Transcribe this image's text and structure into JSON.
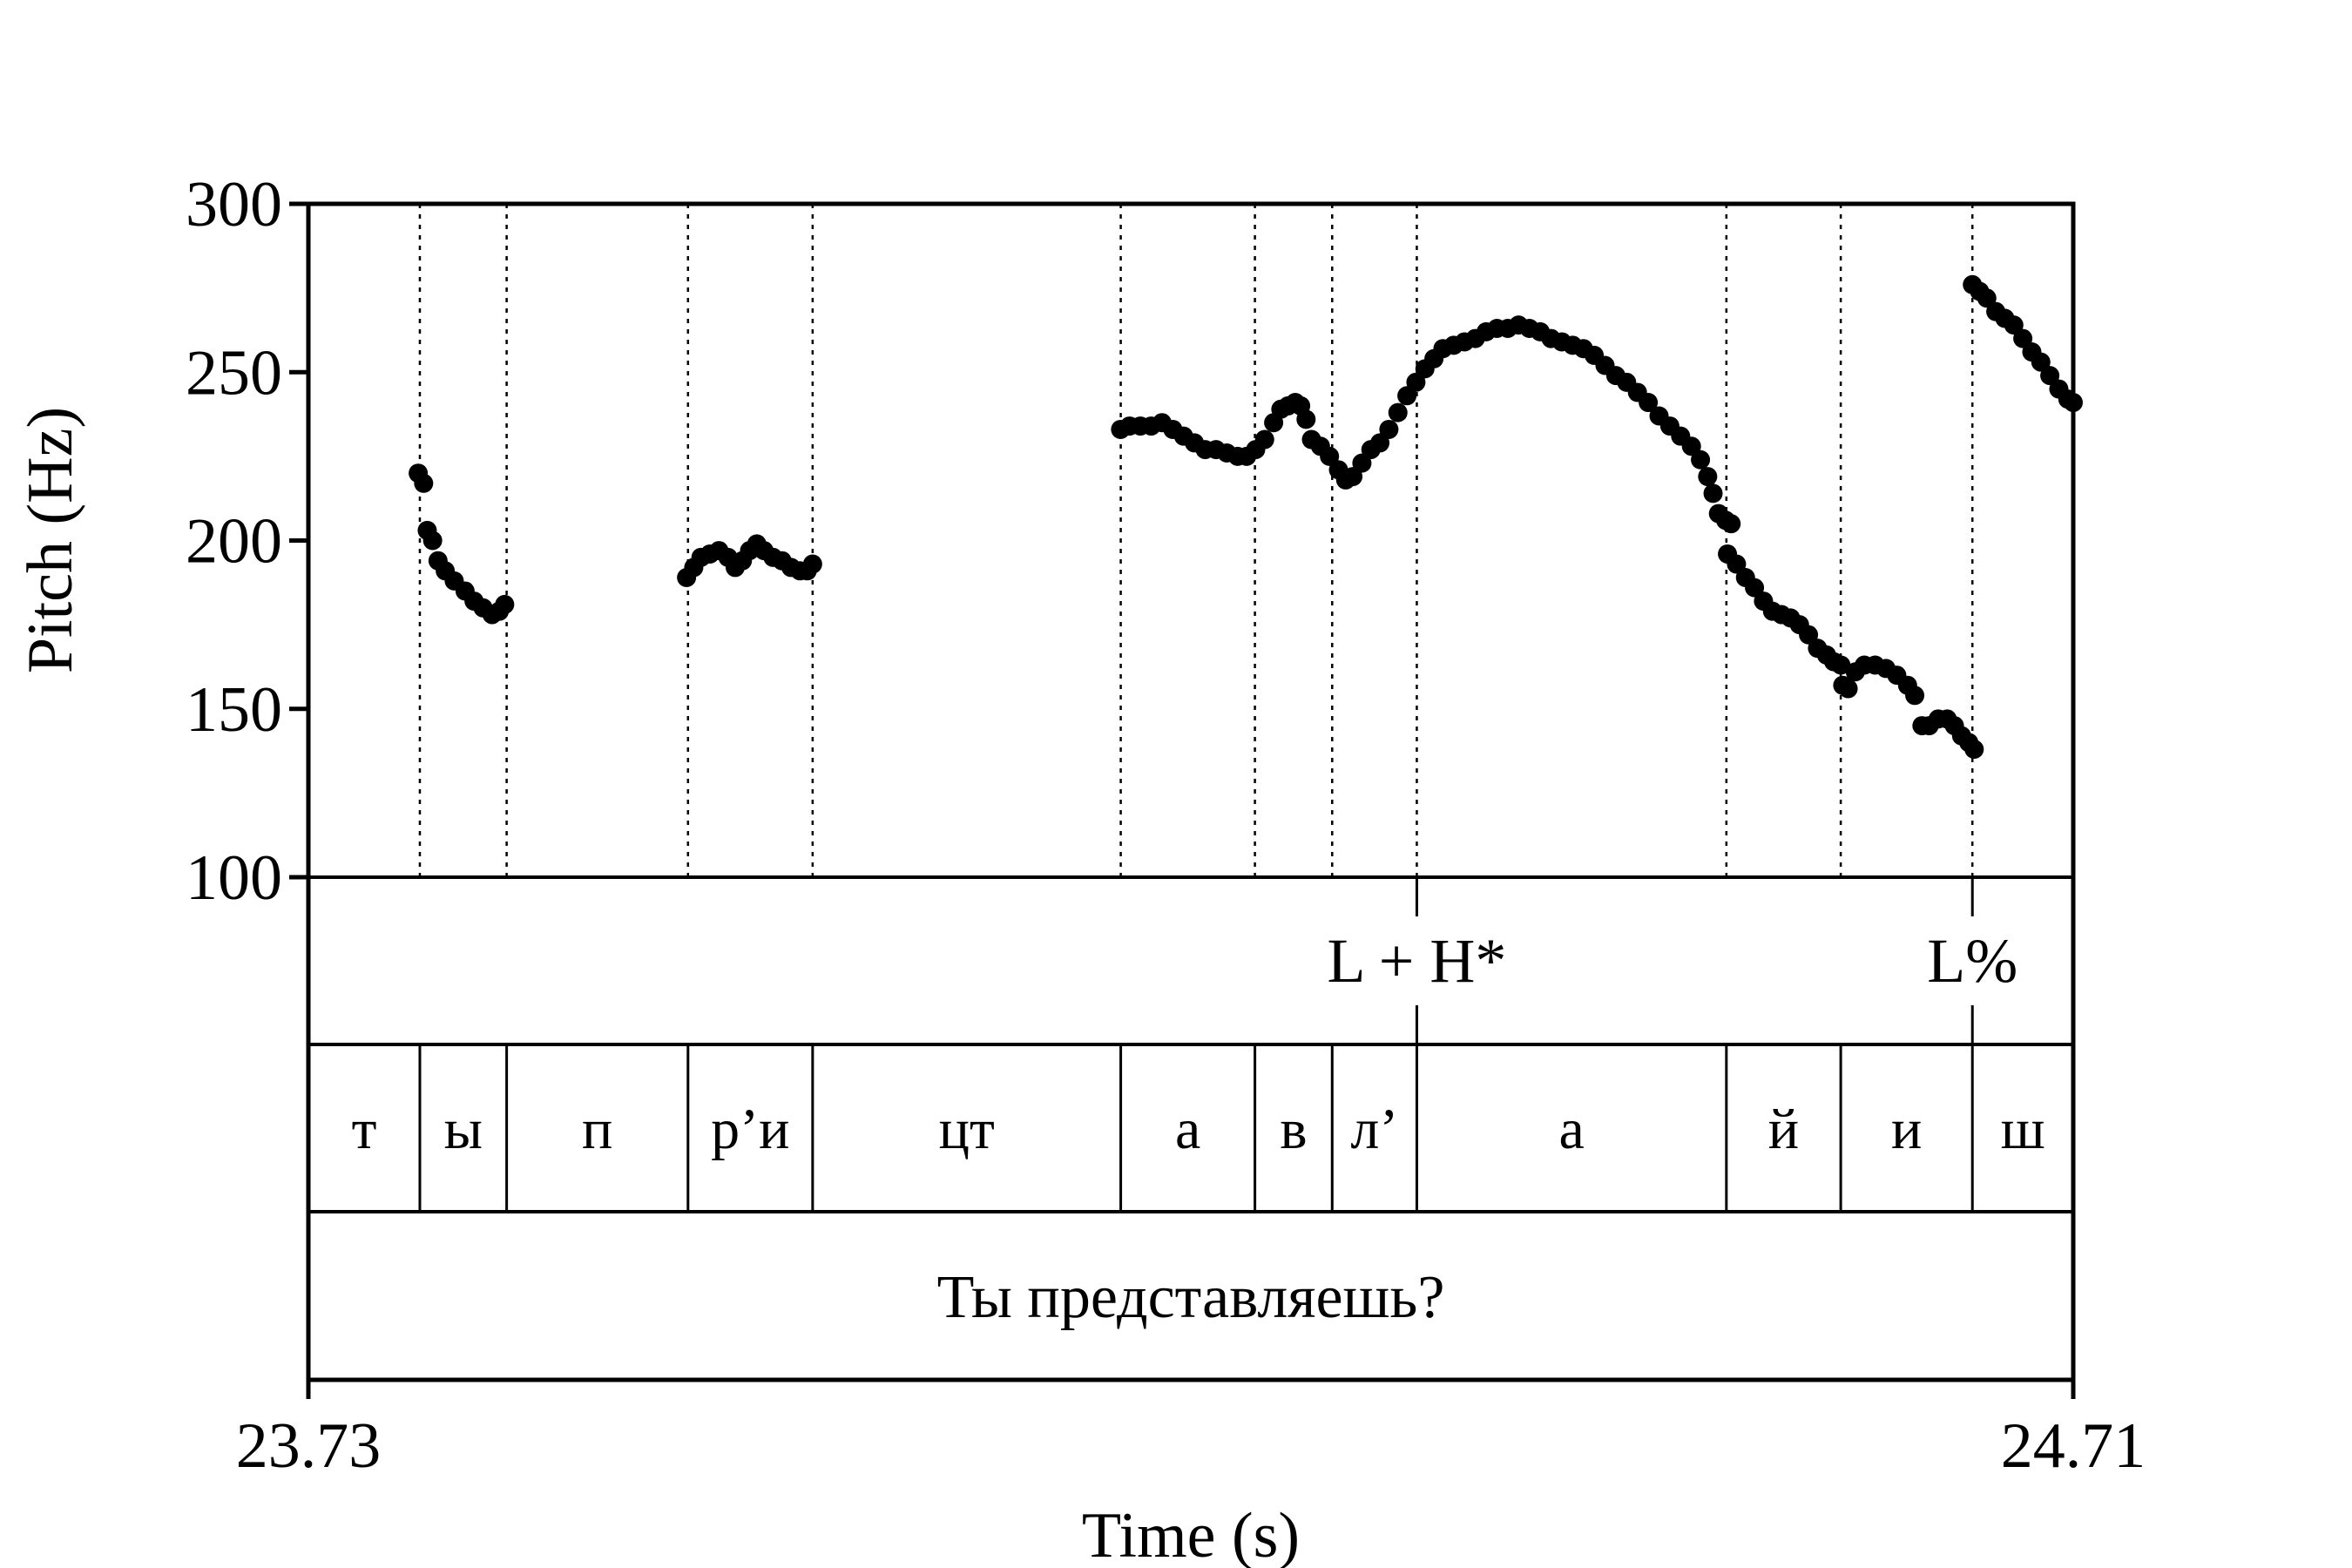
{
  "chart_data": {
    "type": "scatter",
    "title": "",
    "xlabel": "Time (s)",
    "ylabel": "Pitch (Hz)",
    "xlim": [
      23.73,
      24.71
    ],
    "ylim": [
      100,
      300
    ],
    "x_tick_labels": [
      "23.73",
      "24.71"
    ],
    "y_ticks": [
      100,
      150,
      200,
      250,
      300
    ],
    "y_tick_labels": [
      "100",
      "150",
      "200",
      "250",
      "300"
    ],
    "boundaries": [
      23.7919,
      23.8401,
      23.9408,
      24.01,
      24.1811,
      24.2556,
      24.2985,
      24.3455,
      24.5174,
      24.5809,
      24.654
    ],
    "tone_tier": [
      {
        "label": "L + H*",
        "time": 24.3455
      },
      {
        "label": "L%",
        "time": 24.654
      }
    ],
    "segment_tier": [
      "т",
      "ы",
      "п",
      "р’и",
      "цт",
      "а",
      "в",
      "л’",
      "а",
      "й",
      "и",
      "ш"
    ],
    "orthographic_tier": "Ты представляешь?",
    "pitch_series": [
      [
        [
          23.791,
          220
        ],
        [
          23.794,
          217
        ],
        [
          23.796,
          203
        ],
        [
          23.799,
          200
        ],
        [
          23.802,
          194
        ],
        [
          23.806,
          191
        ],
        [
          23.811,
          188
        ],
        [
          23.817,
          185
        ],
        [
          23.822,
          182
        ],
        [
          23.827,
          180
        ],
        [
          23.832,
          178
        ],
        [
          23.836,
          179
        ],
        [
          23.839,
          181
        ]
      ],
      [
        [
          23.94,
          189
        ],
        [
          23.944,
          192
        ],
        [
          23.948,
          195
        ],
        [
          23.953,
          196
        ],
        [
          23.958,
          197
        ],
        [
          23.963,
          195
        ],
        [
          23.967,
          192
        ],
        [
          23.971,
          194
        ],
        [
          23.975,
          197
        ],
        [
          23.979,
          199
        ],
        [
          23.983,
          197
        ],
        [
          23.988,
          195
        ],
        [
          23.993,
          194
        ],
        [
          23.998,
          192
        ],
        [
          24.003,
          191
        ],
        [
          24.007,
          191
        ],
        [
          24.01,
          193
        ]
      ],
      [
        [
          24.181,
          233
        ],
        [
          24.186,
          234
        ],
        [
          24.192,
          234
        ],
        [
          24.198,
          234
        ],
        [
          24.204,
          235
        ],
        [
          24.21,
          233
        ],
        [
          24.216,
          231
        ],
        [
          24.222,
          229
        ],
        [
          24.228,
          227
        ],
        [
          24.234,
          227
        ],
        [
          24.24,
          226
        ],
        [
          24.246,
          225
        ],
        [
          24.251,
          225
        ],
        [
          24.256,
          227
        ],
        [
          24.261,
          230
        ],
        [
          24.266,
          235
        ],
        [
          24.27,
          239
        ],
        [
          24.274,
          240
        ],
        [
          24.278,
          241
        ],
        [
          24.281,
          240
        ],
        [
          24.284,
          236
        ],
        [
          24.287,
          230
        ],
        [
          24.292,
          228
        ],
        [
          24.297,
          225
        ],
        [
          24.302,
          221
        ],
        [
          24.306,
          218
        ],
        [
          24.31,
          219
        ],
        [
          24.315,
          223
        ],
        [
          24.32,
          227
        ],
        [
          24.325,
          229
        ],
        [
          24.33,
          233
        ],
        [
          24.335,
          238
        ],
        [
          24.34,
          243
        ],
        [
          24.345,
          247
        ],
        [
          24.35,
          251
        ],
        [
          24.355,
          254
        ],
        [
          24.36,
          257
        ],
        [
          24.366,
          258
        ],
        [
          24.372,
          259
        ],
        [
          24.378,
          260
        ],
        [
          24.384,
          262
        ],
        [
          24.39,
          263
        ],
        [
          24.396,
          263
        ],
        [
          24.402,
          264
        ],
        [
          24.408,
          263
        ],
        [
          24.414,
          262
        ],
        [
          24.42,
          260
        ],
        [
          24.426,
          259
        ],
        [
          24.432,
          258
        ],
        [
          24.438,
          257
        ],
        [
          24.444,
          255
        ],
        [
          24.45,
          252
        ],
        [
          24.456,
          249
        ],
        [
          24.462,
          247
        ],
        [
          24.468,
          244
        ],
        [
          24.474,
          241
        ],
        [
          24.48,
          237
        ],
        [
          24.486,
          234
        ],
        [
          24.492,
          231
        ],
        [
          24.498,
          228
        ],
        [
          24.503,
          224
        ],
        [
          24.507,
          219
        ],
        [
          24.51,
          214
        ],
        [
          24.513,
          208
        ],
        [
          24.517,
          206
        ],
        [
          24.52,
          205
        ]
      ],
      [
        [
          24.518,
          196
        ],
        [
          24.523,
          193
        ],
        [
          24.528,
          189
        ],
        [
          24.533,
          186
        ],
        [
          24.538,
          182
        ],
        [
          24.543,
          179
        ],
        [
          24.548,
          178
        ],
        [
          24.553,
          177
        ],
        [
          24.558,
          175
        ],
        [
          24.563,
          172
        ],
        [
          24.568,
          168
        ],
        [
          24.573,
          166
        ],
        [
          24.577,
          164
        ],
        [
          24.581,
          163
        ]
      ],
      [
        [
          24.582,
          157
        ],
        [
          24.585,
          156
        ],
        [
          24.589,
          161
        ],
        [
          24.594,
          163
        ],
        [
          24.6,
          163
        ],
        [
          24.606,
          162
        ],
        [
          24.612,
          160
        ],
        [
          24.618,
          157
        ],
        [
          24.622,
          154
        ],
        [
          24.626,
          145
        ],
        [
          24.63,
          145
        ],
        [
          24.635,
          147
        ],
        [
          24.64,
          147
        ],
        [
          24.644,
          145
        ],
        [
          24.648,
          142
        ],
        [
          24.652,
          140
        ],
        [
          24.655,
          138
        ]
      ],
      [
        [
          24.654,
          276
        ],
        [
          24.658,
          274
        ],
        [
          24.662,
          272
        ],
        [
          24.667,
          268
        ],
        [
          24.672,
          266
        ],
        [
          24.677,
          264
        ],
        [
          24.682,
          260
        ],
        [
          24.687,
          256
        ],
        [
          24.692,
          253
        ],
        [
          24.697,
          249
        ],
        [
          24.702,
          245
        ],
        [
          24.707,
          242
        ],
        [
          24.71,
          241
        ]
      ]
    ]
  }
}
